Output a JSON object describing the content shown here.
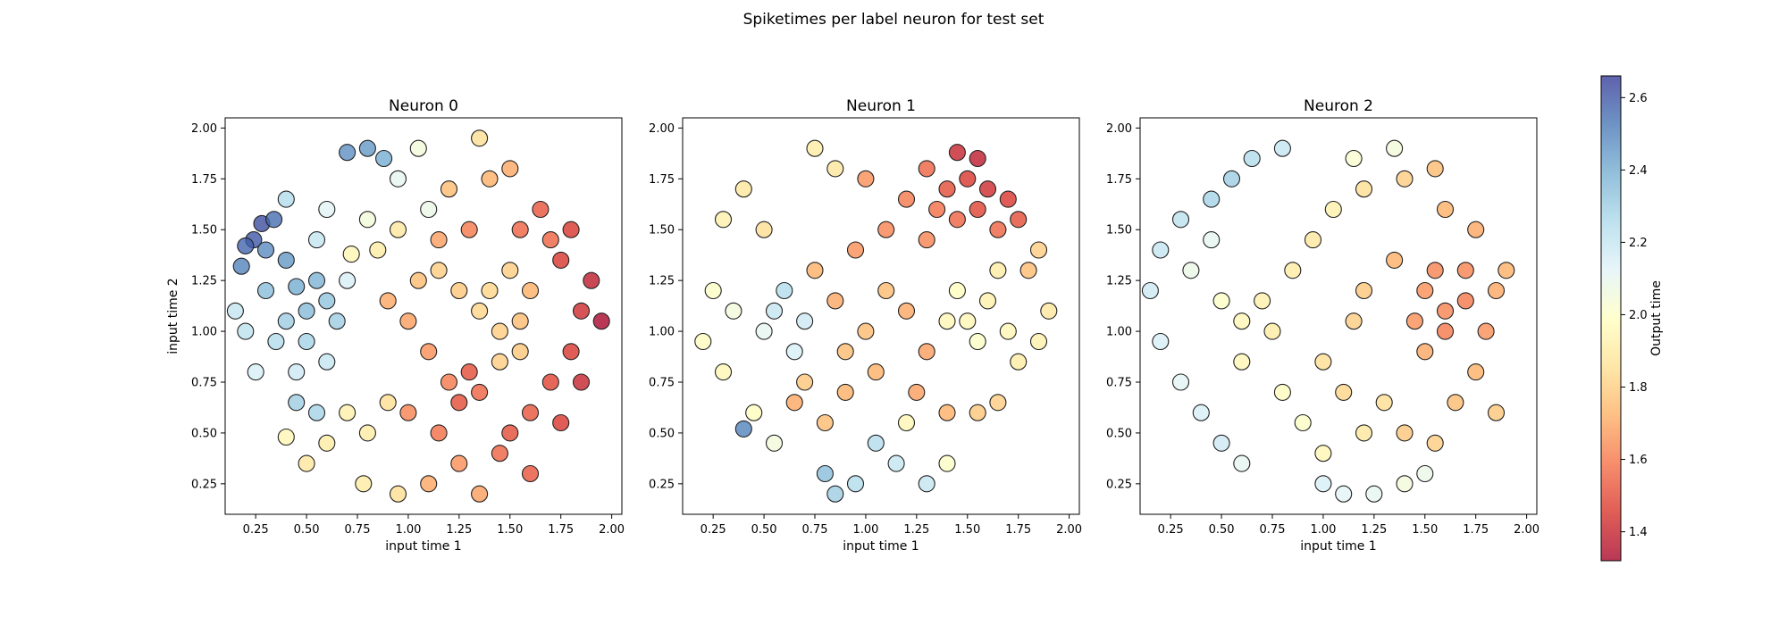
{
  "figure": {
    "suptitle": "Spiketimes per label neuron for test set"
  },
  "chart_data": [
    {
      "type": "scatter",
      "title": "Neuron 0",
      "xlabel": "input time 1",
      "ylabel": "input time 2",
      "xlim": [
        0.1,
        2.05
      ],
      "ylim": [
        0.1,
        2.05
      ],
      "xticks": [
        "0.25",
        "0.50",
        "0.75",
        "1.00",
        "1.25",
        "1.50",
        "1.75",
        "2.00"
      ],
      "yticks": [
        "0.25",
        "0.50",
        "0.75",
        "1.00",
        "1.25",
        "1.50",
        "1.75",
        "2.00"
      ],
      "value_field": "Output time",
      "points": [
        [
          0.28,
          1.53,
          2.62
        ],
        [
          0.24,
          1.45,
          2.6
        ],
        [
          0.2,
          1.42,
          2.57
        ],
        [
          0.34,
          1.55,
          2.55
        ],
        [
          0.18,
          1.32,
          2.5
        ],
        [
          0.3,
          1.4,
          2.48
        ],
        [
          0.4,
          1.35,
          2.45
        ],
        [
          0.7,
          1.88,
          2.47
        ],
        [
          0.8,
          1.9,
          2.45
        ],
        [
          0.88,
          1.85,
          2.4
        ],
        [
          0.45,
          1.22,
          2.4
        ],
        [
          0.55,
          1.25,
          2.38
        ],
        [
          0.5,
          1.1,
          2.36
        ],
        [
          0.6,
          1.15,
          2.33
        ],
        [
          0.4,
          1.05,
          2.3
        ],
        [
          0.3,
          1.2,
          2.35
        ],
        [
          0.65,
          1.05,
          2.3
        ],
        [
          0.5,
          0.95,
          2.28
        ],
        [
          0.35,
          0.95,
          2.25
        ],
        [
          0.2,
          1.0,
          2.22
        ],
        [
          0.45,
          0.65,
          2.3
        ],
        [
          0.55,
          0.6,
          2.28
        ],
        [
          0.6,
          0.85,
          2.2
        ],
        [
          0.45,
          0.8,
          2.18
        ],
        [
          0.25,
          0.8,
          2.15
        ],
        [
          0.15,
          1.1,
          2.2
        ],
        [
          0.7,
          1.25,
          2.15
        ],
        [
          0.55,
          1.45,
          2.2
        ],
        [
          0.4,
          1.65,
          2.25
        ],
        [
          0.6,
          1.6,
          2.12
        ],
        [
          0.95,
          1.75,
          2.1
        ],
        [
          1.05,
          1.9,
          2.05
        ],
        [
          1.1,
          1.6,
          2.08
        ],
        [
          0.8,
          1.55,
          2.05
        ],
        [
          0.72,
          1.38,
          1.95
        ],
        [
          0.85,
          1.4,
          1.9
        ],
        [
          0.95,
          1.5,
          1.88
        ],
        [
          0.8,
          0.5,
          1.9
        ],
        [
          0.7,
          0.6,
          1.92
        ],
        [
          0.9,
          0.65,
          1.85
        ],
        [
          0.6,
          0.45,
          1.9
        ],
        [
          0.4,
          0.48,
          1.95
        ],
        [
          0.5,
          0.35,
          1.88
        ],
        [
          0.78,
          0.25,
          1.9
        ],
        [
          0.95,
          0.2,
          1.85
        ],
        [
          1.15,
          1.3,
          1.8
        ],
        [
          1.25,
          1.2,
          1.78
        ],
        [
          1.35,
          1.1,
          1.82
        ],
        [
          1.45,
          1.0,
          1.8
        ],
        [
          1.55,
          1.05,
          1.75
        ],
        [
          1.6,
          1.2,
          1.72
        ],
        [
          1.5,
          1.3,
          1.8
        ],
        [
          1.4,
          1.2,
          1.82
        ],
        [
          1.55,
          0.9,
          1.78
        ],
        [
          1.45,
          0.85,
          1.8
        ],
        [
          1.35,
          1.95,
          1.85
        ],
        [
          1.4,
          1.75,
          1.72
        ],
        [
          1.5,
          1.8,
          1.7
        ],
        [
          1.2,
          1.7,
          1.75
        ],
        [
          1.05,
          1.25,
          1.75
        ],
        [
          1.0,
          1.05,
          1.68
        ],
        [
          0.9,
          1.15,
          1.7
        ],
        [
          1.1,
          0.9,
          1.65
        ],
        [
          1.2,
          0.75,
          1.6
        ],
        [
          1.0,
          0.6,
          1.62
        ],
        [
          1.15,
          0.5,
          1.58
        ],
        [
          1.25,
          0.35,
          1.65
        ],
        [
          1.1,
          0.25,
          1.7
        ],
        [
          1.35,
          0.2,
          1.68
        ],
        [
          1.45,
          0.4,
          1.55
        ],
        [
          1.6,
          0.6,
          1.52
        ],
        [
          1.7,
          0.75,
          1.48
        ],
        [
          1.8,
          0.9,
          1.45
        ],
        [
          1.85,
          1.1,
          1.42
        ],
        [
          1.9,
          1.25,
          1.38
        ],
        [
          1.75,
          1.35,
          1.45
        ],
        [
          1.8,
          1.5,
          1.45
        ],
        [
          1.65,
          1.6,
          1.52
        ],
        [
          1.55,
          1.5,
          1.55
        ],
        [
          1.7,
          1.45,
          1.55
        ],
        [
          1.3,
          0.8,
          1.5
        ],
        [
          1.25,
          0.65,
          1.5
        ],
        [
          1.35,
          0.7,
          1.55
        ],
        [
          1.6,
          0.3,
          1.52
        ],
        [
          1.5,
          0.5,
          1.5
        ],
        [
          1.95,
          1.05,
          1.32
        ],
        [
          1.85,
          0.75,
          1.4
        ],
        [
          1.75,
          0.55,
          1.45
        ],
        [
          1.3,
          1.5,
          1.6
        ],
        [
          1.15,
          1.45,
          1.68
        ]
      ]
    },
    {
      "type": "scatter",
      "title": "Neuron 1",
      "xlabel": "input time 1",
      "ylabel": "",
      "xlim": [
        0.1,
        2.05
      ],
      "ylim": [
        0.1,
        2.05
      ],
      "xticks": [
        "0.25",
        "0.50",
        "0.75",
        "1.00",
        "1.25",
        "1.50",
        "1.75",
        "2.00"
      ],
      "yticks": [
        "0.25",
        "0.50",
        "0.75",
        "1.00",
        "1.25",
        "1.50",
        "1.75",
        "2.00"
      ],
      "value_field": "Output time",
      "points": [
        [
          0.4,
          0.52,
          2.5
        ],
        [
          0.8,
          0.3,
          2.35
        ],
        [
          0.85,
          0.2,
          2.3
        ],
        [
          0.95,
          0.25,
          2.25
        ],
        [
          1.05,
          0.45,
          2.25
        ],
        [
          1.15,
          0.35,
          2.2
        ],
        [
          1.3,
          0.25,
          2.2
        ],
        [
          0.6,
          1.2,
          2.25
        ],
        [
          0.55,
          1.1,
          2.2
        ],
        [
          0.7,
          1.05,
          2.18
        ],
        [
          0.65,
          0.9,
          2.15
        ],
        [
          0.5,
          1.0,
          2.1
        ],
        [
          0.35,
          1.1,
          2.05
        ],
        [
          0.25,
          1.2,
          2.0
        ],
        [
          0.2,
          0.95,
          1.98
        ],
        [
          0.3,
          0.8,
          1.95
        ],
        [
          0.55,
          0.45,
          2.05
        ],
        [
          0.45,
          0.6,
          1.98
        ],
        [
          1.4,
          0.35,
          2.0
        ],
        [
          1.2,
          0.55,
          1.95
        ],
        [
          1.5,
          1.05,
          1.95
        ],
        [
          1.6,
          1.15,
          1.92
        ],
        [
          1.45,
          1.2,
          1.98
        ],
        [
          1.7,
          1.0,
          1.95
        ],
        [
          1.55,
          0.95,
          2.0
        ],
        [
          1.75,
          0.85,
          1.9
        ],
        [
          1.85,
          0.95,
          1.92
        ],
        [
          1.9,
          1.1,
          1.88
        ],
        [
          1.65,
          1.3,
          1.9
        ],
        [
          1.4,
          1.05,
          1.95
        ],
        [
          0.4,
          1.7,
          1.88
        ],
        [
          0.5,
          1.5,
          1.85
        ],
        [
          0.3,
          1.55,
          1.92
        ],
        [
          0.75,
          1.9,
          1.9
        ],
        [
          0.85,
          1.8,
          1.88
        ],
        [
          1.1,
          1.2,
          1.75
        ],
        [
          1.2,
          1.1,
          1.7
        ],
        [
          1.3,
          0.9,
          1.68
        ],
        [
          1.05,
          0.8,
          1.72
        ],
        [
          0.9,
          0.9,
          1.75
        ],
        [
          0.85,
          1.15,
          1.7
        ],
        [
          0.75,
          1.3,
          1.72
        ],
        [
          0.95,
          1.4,
          1.65
        ],
        [
          1.1,
          1.5,
          1.62
        ],
        [
          1.2,
          1.65,
          1.6
        ],
        [
          1.3,
          1.45,
          1.62
        ],
        [
          1.0,
          1.75,
          1.65
        ],
        [
          0.8,
          0.55,
          1.75
        ],
        [
          0.9,
          0.7,
          1.72
        ],
        [
          1.25,
          0.7,
          1.68
        ],
        [
          1.4,
          0.6,
          1.72
        ],
        [
          1.55,
          0.6,
          1.78
        ],
        [
          1.65,
          0.65,
          1.8
        ],
        [
          1.3,
          1.8,
          1.55
        ],
        [
          1.4,
          1.7,
          1.5
        ],
        [
          1.5,
          1.75,
          1.45
        ],
        [
          1.55,
          1.85,
          1.38
        ],
        [
          1.6,
          1.7,
          1.42
        ],
        [
          1.7,
          1.65,
          1.45
        ],
        [
          1.75,
          1.55,
          1.5
        ],
        [
          1.65,
          1.5,
          1.55
        ],
        [
          1.45,
          1.55,
          1.55
        ],
        [
          1.55,
          1.6,
          1.48
        ],
        [
          1.35,
          1.6,
          1.58
        ],
        [
          1.45,
          1.88,
          1.4
        ],
        [
          1.8,
          1.3,
          1.75
        ],
        [
          1.85,
          1.4,
          1.8
        ],
        [
          0.65,
          0.65,
          1.7
        ],
        [
          0.7,
          0.75,
          1.78
        ],
        [
          1.0,
          1.0,
          1.75
        ]
      ]
    },
    {
      "type": "scatter",
      "title": "Neuron 2",
      "xlabel": "input time 1",
      "ylabel": "",
      "xlim": [
        0.1,
        2.05
      ],
      "ylim": [
        0.1,
        2.05
      ],
      "xticks": [
        "0.25",
        "0.50",
        "0.75",
        "1.00",
        "1.25",
        "1.50",
        "1.75",
        "2.00"
      ],
      "yticks": [
        "0.25",
        "0.50",
        "0.75",
        "1.00",
        "1.25",
        "1.50",
        "1.75",
        "2.00"
      ],
      "value_field": "Output time",
      "points": [
        [
          0.55,
          1.75,
          2.3
        ],
        [
          0.45,
          1.65,
          2.28
        ],
        [
          0.65,
          1.85,
          2.25
        ],
        [
          0.8,
          1.9,
          2.2
        ],
        [
          0.3,
          1.55,
          2.22
        ],
        [
          0.2,
          1.4,
          2.2
        ],
        [
          0.15,
          1.2,
          2.18
        ],
        [
          0.2,
          0.95,
          2.15
        ],
        [
          0.3,
          0.75,
          2.12
        ],
        [
          0.4,
          0.6,
          2.15
        ],
        [
          0.5,
          0.45,
          2.18
        ],
        [
          0.6,
          0.35,
          2.1
        ],
        [
          0.35,
          1.3,
          2.08
        ],
        [
          0.45,
          1.45,
          2.1
        ],
        [
          1.0,
          0.25,
          2.15
        ],
        [
          1.1,
          0.2,
          2.12
        ],
        [
          1.25,
          0.2,
          2.1
        ],
        [
          1.4,
          0.25,
          2.05
        ],
        [
          1.5,
          0.3,
          2.08
        ],
        [
          1.35,
          1.9,
          2.05
        ],
        [
          1.15,
          1.85,
          2.02
        ],
        [
          0.5,
          1.15,
          2.0
        ],
        [
          0.6,
          1.05,
          1.95
        ],
        [
          0.7,
          1.15,
          1.92
        ],
        [
          0.75,
          1.0,
          1.9
        ],
        [
          0.6,
          0.85,
          1.95
        ],
        [
          0.8,
          0.7,
          1.98
        ],
        [
          0.9,
          0.55,
          2.0
        ],
        [
          1.0,
          0.4,
          1.95
        ],
        [
          0.85,
          1.3,
          1.9
        ],
        [
          0.95,
          1.45,
          1.88
        ],
        [
          1.05,
          1.6,
          1.92
        ],
        [
          1.2,
          1.7,
          1.85
        ],
        [
          1.4,
          1.75,
          1.8
        ],
        [
          1.55,
          1.8,
          1.75
        ],
        [
          1.2,
          0.5,
          1.88
        ],
        [
          1.3,
          0.65,
          1.85
        ],
        [
          1.1,
          0.7,
          1.82
        ],
        [
          1.0,
          0.85,
          1.85
        ],
        [
          1.15,
          1.05,
          1.8
        ],
        [
          1.2,
          1.2,
          1.78
        ],
        [
          1.35,
          1.35,
          1.72
        ],
        [
          1.5,
          1.2,
          1.65
        ],
        [
          1.6,
          1.1,
          1.62
        ],
        [
          1.7,
          1.15,
          1.6
        ],
        [
          1.6,
          1.0,
          1.6
        ],
        [
          1.55,
          1.3,
          1.62
        ],
        [
          1.7,
          1.3,
          1.62
        ],
        [
          1.45,
          1.05,
          1.65
        ],
        [
          1.5,
          0.9,
          1.7
        ],
        [
          1.8,
          1.0,
          1.65
        ],
        [
          1.85,
          1.2,
          1.7
        ],
        [
          1.75,
          0.8,
          1.72
        ],
        [
          1.65,
          0.65,
          1.75
        ],
        [
          1.4,
          0.5,
          1.78
        ],
        [
          1.55,
          0.45,
          1.8
        ],
        [
          1.85,
          0.6,
          1.78
        ],
        [
          1.9,
          1.3,
          1.72
        ],
        [
          1.75,
          1.5,
          1.7
        ],
        [
          1.6,
          1.6,
          1.72
        ]
      ]
    }
  ],
  "colorbar": {
    "label": "Output time",
    "min": 1.32,
    "max": 2.66,
    "ticks": [
      "1.4",
      "1.6",
      "1.8",
      "2.0",
      "2.2",
      "2.4",
      "2.6"
    ],
    "colormap": [
      "#a50026",
      "#d73027",
      "#f46d43",
      "#fdae61",
      "#fee090",
      "#ffffbf",
      "#e0f3f8",
      "#abd9e9",
      "#74add1",
      "#4575b4",
      "#313695"
    ]
  }
}
